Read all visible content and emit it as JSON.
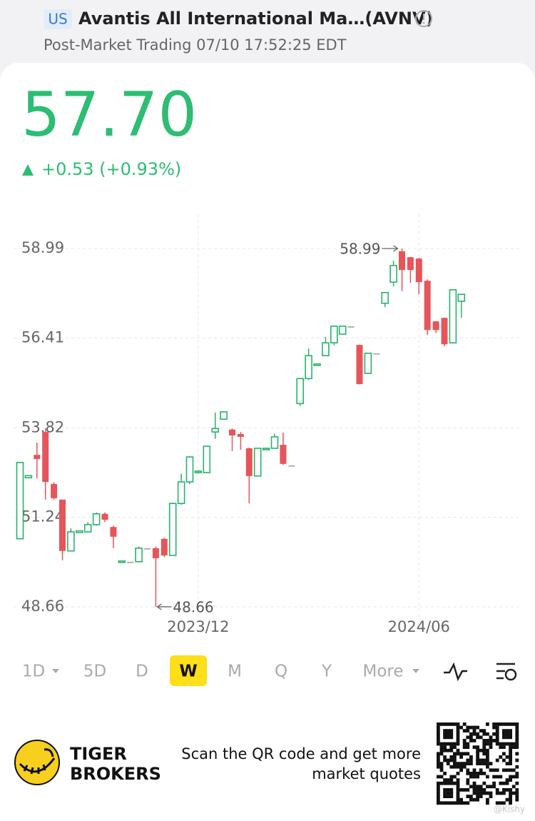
{
  "header": {
    "market": "US",
    "title": "Avantis All International Ma…(AVNV)",
    "subtitle": "Post-Market Trading 07/10 17:52:25 EDT"
  },
  "quote": {
    "price": "57.70",
    "change": "+0.53 (+0.93%)"
  },
  "chart_data": {
    "type": "candlestick",
    "categories": [
      null,
      null,
      null,
      null,
      null,
      null,
      null,
      null,
      null,
      null,
      null,
      null,
      null,
      null,
      null,
      null,
      null,
      null,
      null,
      null,
      null,
      "2023/12",
      null,
      null,
      null,
      null,
      null,
      null,
      null,
      null,
      null,
      null,
      null,
      null,
      null,
      null,
      null,
      null,
      null,
      null,
      null,
      null,
      null,
      null,
      null,
      null,
      null,
      "2024/06",
      null,
      null,
      null,
      null,
      null
    ],
    "open": [
      50.62,
      52.38,
      53.04,
      53.7,
      52.2,
      51.75,
      50.27,
      50.8,
      50.82,
      51.03,
      51.34,
      50.96,
      49.94,
      49.96,
      49.96,
      50.35,
      50.35,
      50.62,
      50.14,
      51.64,
      52.26,
      52.55,
      52.53,
      53.7,
      54.07,
      53.77,
      53.64,
      53.23,
      52.43,
      53.21,
      53.23,
      53.33,
      52.74,
      54.52,
      55.24,
      55.64,
      55.9,
      56.27,
      56.52,
      56.75,
      56.21,
      55.39,
      55.97,
      57.41,
      58.02,
      58.91,
      58.74,
      58.7,
      58.06,
      56.89,
      56.99,
      56.27,
      57.47
    ],
    "high": [
      52.82,
      52.45,
      53.39,
      53.8,
      52.25,
      51.75,
      50.92,
      50.86,
      51.1,
      51.38,
      51.38,
      51.0,
      49.98,
      49.96,
      50.4,
      50.35,
      50.4,
      50.65,
      51.66,
      52.5,
      53.0,
      52.6,
      53.29,
      54.26,
      54.3,
      53.8,
      53.7,
      53.25,
      53.23,
      53.25,
      53.65,
      53.68,
      52.74,
      55.25,
      56.11,
      55.68,
      56.44,
      56.77,
      56.75,
      56.75,
      56.22,
      55.97,
      55.97,
      57.73,
      58.64,
      58.99,
      58.75,
      58.72,
      58.1,
      56.9,
      57.0,
      57.81,
      57.68
    ],
    "low": [
      50.62,
      52.37,
      52.36,
      51.75,
      51.75,
      50.0,
      50.27,
      50.78,
      50.8,
      51.0,
      51.1,
      50.35,
      49.94,
      49.96,
      49.94,
      50.35,
      48.66,
      50.1,
      50.14,
      51.6,
      52.2,
      52.5,
      52.53,
      53.5,
      54.05,
      53.15,
      53.19,
      51.64,
      52.43,
      53.2,
      53.23,
      52.75,
      52.74,
      54.45,
      55.2,
      55.64,
      55.9,
      56.2,
      56.52,
      56.75,
      55.07,
      55.39,
      55.97,
      57.3,
      57.9,
      57.76,
      58.0,
      57.67,
      56.5,
      56.55,
      56.17,
      56.25,
      56.99
    ],
    "close": [
      52.82,
      52.44,
      52.92,
      52.26,
      51.79,
      50.27,
      50.82,
      50.85,
      51.03,
      51.34,
      51.17,
      50.68,
      49.98,
      49.96,
      50.35,
      50.35,
      50.06,
      50.14,
      51.64,
      52.26,
      52.98,
      52.57,
      53.29,
      53.8,
      54.28,
      53.6,
      53.56,
      52.43,
      53.23,
      53.23,
      53.56,
      52.78,
      52.74,
      55.24,
      55.9,
      55.66,
      56.27,
      56.75,
      56.75,
      56.75,
      55.08,
      55.97,
      55.97,
      57.72,
      58.5,
      58.37,
      58.37,
      58.02,
      56.64,
      56.64,
      56.23,
      57.8,
      57.67
    ],
    "ylim": [
      48.35,
      59.98
    ],
    "yticks": [
      58.99,
      56.41,
      53.82,
      51.24,
      48.66
    ],
    "grid": true,
    "colors": {
      "up": "#27b36b",
      "down": "#e5555a",
      "flat": "#b0b0b0"
    },
    "annotations": [
      {
        "value": 58.99,
        "label": "58.99"
      },
      {
        "value": 48.66,
        "label": "48.66"
      }
    ]
  },
  "tabs": {
    "items": [
      "1D",
      "5D",
      "D",
      "W",
      "M",
      "Q",
      "Y",
      "More"
    ],
    "active": "W"
  },
  "footer": {
    "brand": [
      "TIGER",
      "BROKERS"
    ],
    "scan": [
      "Scan the QR code and get more",
      "market quotes"
    ],
    "watermark": "@Kishy"
  }
}
